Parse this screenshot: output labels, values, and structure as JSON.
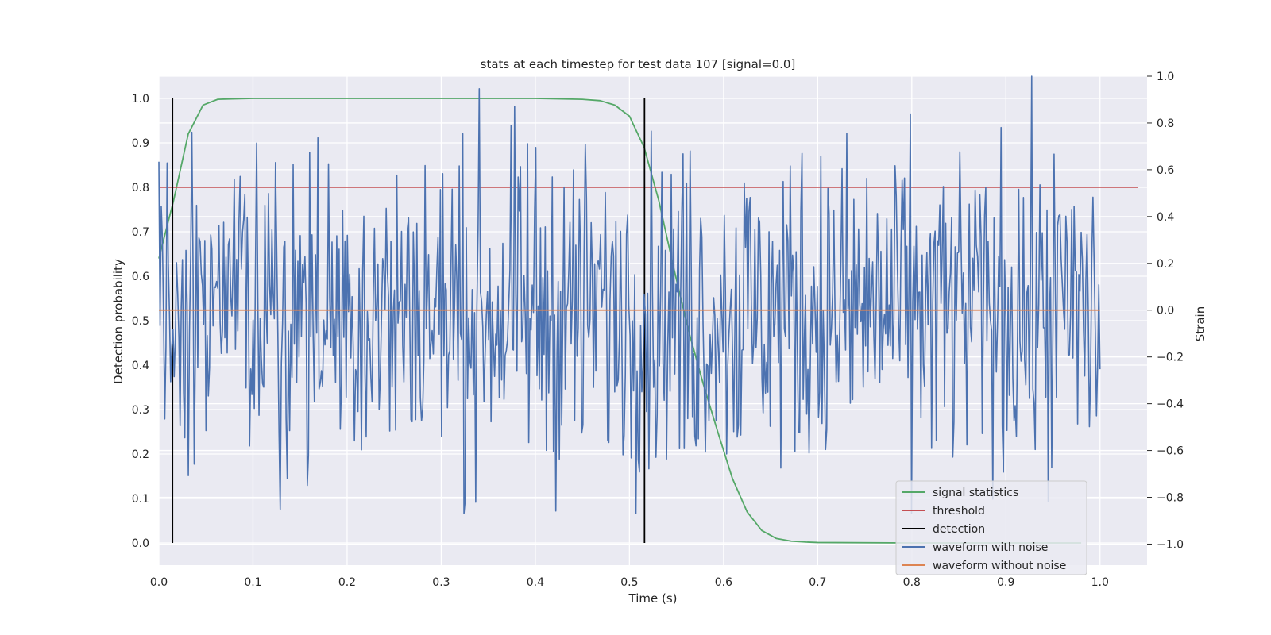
{
  "chart_data": {
    "type": "line",
    "title": "stats at each timestep for test data 107 [signal=0.0]",
    "xlabel": "Time (s)",
    "ylabel": "Detection probability",
    "y2label": "Strain",
    "xlim": [
      0.0,
      1.05
    ],
    "ylim": [
      -0.05,
      1.05
    ],
    "y2lim": [
      -1.09,
      1.0
    ],
    "grid": true,
    "legend_position": "lower-right",
    "xticks": [
      "0.0",
      "0.1",
      "0.2",
      "0.3",
      "0.4",
      "0.5",
      "0.6",
      "0.7",
      "0.8",
      "0.9",
      "1.0"
    ],
    "yticks": [
      "0.0",
      "0.1",
      "0.2",
      "0.3",
      "0.4",
      "0.5",
      "0.6",
      "0.7",
      "0.8",
      "0.9",
      "1.0"
    ],
    "y2ticks": [
      "−1.0",
      "−0.8",
      "−0.6",
      "−0.4",
      "−0.2",
      "0.0",
      "0.2",
      "0.4",
      "0.6",
      "0.8",
      "1.0"
    ],
    "series": [
      {
        "name": "signal statistics",
        "axis": "left",
        "color": "#55a868",
        "x": [
          0.0,
          0.0156,
          0.0312,
          0.0469,
          0.0625,
          0.0781,
          0.1,
          0.2,
          0.3,
          0.4,
          0.45,
          0.4688,
          0.4844,
          0.5,
          0.5156,
          0.5312,
          0.5469,
          0.5625,
          0.5781,
          0.5938,
          0.6094,
          0.625,
          0.6406,
          0.6562,
          0.6719,
          0.6875,
          0.7,
          0.8,
          0.9,
          0.98
        ],
        "y": [
          0.64,
          0.77,
          0.92,
          0.985,
          0.998,
          0.999,
          1.0,
          1.0,
          1.0,
          1.0,
          0.998,
          0.995,
          0.985,
          0.96,
          0.89,
          0.77,
          0.62,
          0.48,
          0.36,
          0.25,
          0.145,
          0.07,
          0.028,
          0.01,
          0.004,
          0.002,
          0.001,
          0.0,
          0.0,
          0.0
        ]
      },
      {
        "name": "threshold",
        "axis": "left",
        "color": "#c44e52",
        "x": [
          0.0,
          1.04
        ],
        "y": [
          0.8,
          0.8
        ]
      },
      {
        "name": "detection",
        "axis": "left",
        "color": "#000000",
        "segments": [
          {
            "x": 0.0145,
            "y": [
              0.0,
              1.0
            ]
          },
          {
            "x": 0.516,
            "y": [
              0.0,
              1.0
            ]
          }
        ]
      },
      {
        "name": "waveform with noise",
        "axis": "right",
        "color": "#4c72b0",
        "x_range": [
          0.0,
          1.0
        ],
        "samples": 800,
        "y_range": [
          -0.87,
          1.0
        ]
      },
      {
        "name": "waveform without noise",
        "axis": "right",
        "color": "#dd8452",
        "x": [
          0.0,
          1.0
        ],
        "y": [
          0.0,
          0.0
        ]
      }
    ],
    "legend": [
      {
        "label": "signal statistics",
        "color": "#55a868"
      },
      {
        "label": "threshold",
        "color": "#c44e52"
      },
      {
        "label": "detection",
        "color": "#000000"
      },
      {
        "label": "waveform with noise",
        "color": "#4c72b0"
      },
      {
        "label": "waveform without noise",
        "color": "#dd8452"
      }
    ]
  }
}
